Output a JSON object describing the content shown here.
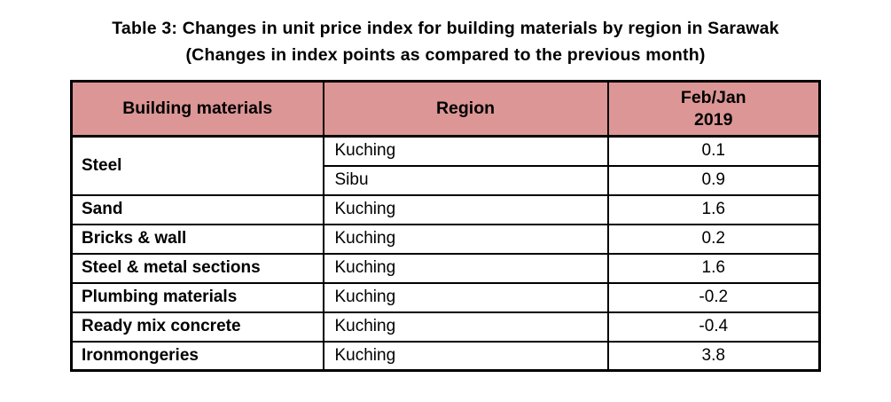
{
  "title": {
    "line1": "Table 3: Changes in unit price index for building materials by region in Sarawak",
    "line2": "(Changes in index points as compared to the previous month)"
  },
  "table": {
    "header": {
      "materials": "Building materials",
      "region": "Region",
      "period_line1": "Feb/Jan",
      "period_line2": "2019"
    },
    "groups": [
      {
        "material": "Steel",
        "entries": [
          {
            "region": "Kuching",
            "value": "0.1"
          },
          {
            "region": "Sibu",
            "value": "0.9"
          }
        ]
      },
      {
        "material": "Sand",
        "entries": [
          {
            "region": "Kuching",
            "value": "1.6"
          }
        ]
      },
      {
        "material": "Bricks & wall",
        "entries": [
          {
            "region": "Kuching",
            "value": "0.2"
          }
        ]
      },
      {
        "material": "Steel & metal sections",
        "entries": [
          {
            "region": "Kuching",
            "value": "1.6"
          }
        ]
      },
      {
        "material": "Plumbing materials",
        "entries": [
          {
            "region": "Kuching",
            "value": "-0.2"
          }
        ]
      },
      {
        "material": "Ready mix concrete",
        "entries": [
          {
            "region": "Kuching",
            "value": "-0.4"
          }
        ]
      },
      {
        "material": "Ironmongeries",
        "entries": [
          {
            "region": "Kuching",
            "value": "3.8"
          }
        ]
      }
    ]
  },
  "colors": {
    "header_background": "#dc9695",
    "border": "#000000",
    "text": "#000000",
    "page_background": "#ffffff"
  }
}
